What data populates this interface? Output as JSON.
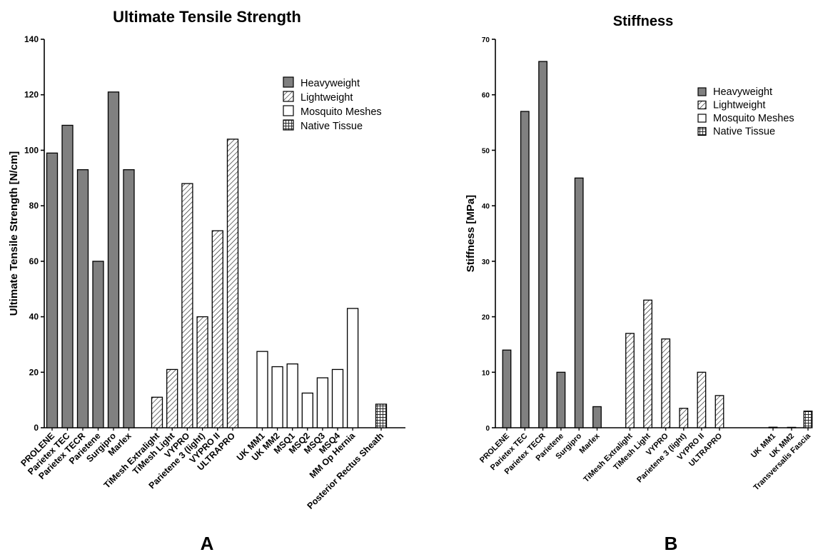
{
  "chart_data": [
    {
      "type": "bar",
      "panel_label": "A",
      "title": "Ultimate Tensile Strength",
      "ylabel": "Ultimate Tensile Strength [N/cm]",
      "xlabel": "",
      "ylim": [
        0,
        140
      ],
      "yticks": [
        0,
        20,
        40,
        60,
        80,
        100,
        120,
        140
      ],
      "grid": false,
      "legend_position": "top-right",
      "legend": [
        {
          "name": "Heavyweight",
          "style": "solid"
        },
        {
          "name": "Lightweight",
          "style": "hatch"
        },
        {
          "name": "Mosquito Meshes",
          "style": "empty"
        },
        {
          "name": "Native Tissue",
          "style": "grid"
        }
      ],
      "categories": [
        "PROLENE",
        "Parietex TEC",
        "Parietex TECR",
        "Parietene",
        "Surgipro",
        "Marlex",
        "TiMesh Extralight",
        "TiMesh Light",
        "VYPRO",
        "Parietene 3 (light)",
        "VYPRO II",
        "ULTRAPRO",
        "UK MM1",
        "UK MM2",
        "MSQ1",
        "MSQ2",
        "MSQ3",
        "MSQ4",
        "MM Op Hernia",
        "Posterior Rectus Sheath"
      ],
      "groups": [
        0,
        0,
        0,
        0,
        0,
        0,
        1,
        1,
        1,
        1,
        1,
        1,
        2,
        2,
        2,
        2,
        2,
        2,
        2,
        3
      ],
      "values": [
        99,
        109,
        93,
        60,
        121,
        93,
        11,
        21,
        88,
        40,
        71,
        104,
        27.5,
        22,
        23,
        12.5,
        18,
        21,
        43,
        8.5
      ]
    },
    {
      "type": "bar",
      "panel_label": "B",
      "title": "Stiffness",
      "ylabel": "Stiffness [MPa]",
      "xlabel": "",
      "ylim": [
        0,
        70
      ],
      "yticks": [
        0,
        10,
        20,
        30,
        40,
        50,
        60,
        70
      ],
      "grid": false,
      "legend_position": "top-right",
      "legend": [
        {
          "name": "Heavyweight",
          "style": "solid"
        },
        {
          "name": "Lightweight",
          "style": "hatch"
        },
        {
          "name": "Mosquito Meshes",
          "style": "empty"
        },
        {
          "name": "Native Tissue",
          "style": "grid"
        }
      ],
      "categories": [
        "PROLENE",
        "Parietex TEC",
        "Parietex TECR",
        "Parietene",
        "Surgipro",
        "Marlex",
        "TiMesh Extralight",
        "TiMesh Light",
        "VYPRO",
        "Parietene 3 (light)",
        "VYPRO II",
        "ULTRAPRO",
        "UK MM1",
        "UK MM2",
        "Transversalis Fascia"
      ],
      "groups": [
        0,
        0,
        0,
        0,
        0,
        0,
        1,
        1,
        1,
        1,
        1,
        1,
        2,
        2,
        3
      ],
      "values": [
        14,
        57,
        66,
        10,
        45,
        3.8,
        17,
        23,
        16,
        3.5,
        10,
        5.8,
        0.1,
        0.05,
        3
      ]
    }
  ]
}
